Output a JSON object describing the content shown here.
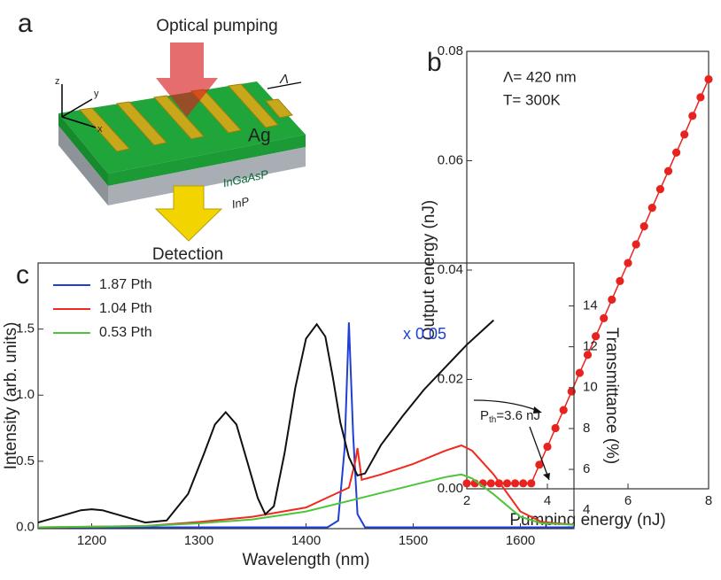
{
  "diagram": {
    "panel_label": "a",
    "pump": "Optical pumping",
    "detection": "Detection",
    "metal": "Ag",
    "gain": "InGaAsP",
    "substrate": "InP",
    "period": "Λ",
    "axis_x": "x",
    "axis_y": "y",
    "axis_z": "z"
  },
  "chart_data": [
    {
      "type": "line",
      "label": "b",
      "markers": true,
      "x_label": "Pumping energy (nJ)",
      "y_label": "Output energy (nJ)",
      "annotations": [
        "Λ= 420 nm",
        "T= 300K"
      ],
      "threshold_label": {
        "symbol": "P",
        "subscript": "th",
        "text": "=3.6 nJ"
      },
      "xlim": [
        2,
        8
      ],
      "xticks": [
        2,
        4,
        6,
        8
      ],
      "ylim": [
        0,
        0.08
      ],
      "yticks": [
        {
          "value": 0,
          "label": "0.00"
        },
        {
          "value": 0.02,
          "label": "0.02"
        },
        {
          "value": 0.04,
          "label": "0.04"
        },
        {
          "value": 0.06,
          "label": "0.06"
        },
        {
          "value": 0.08,
          "label": "0.08"
        }
      ],
      "series": [
        {
          "color": "#e8231f",
          "x": [
            2.0,
            2.2,
            2.4,
            2.6,
            2.8,
            3.0,
            3.2,
            3.4,
            3.6,
            3.8,
            4.0,
            4.2,
            4.4,
            4.6,
            4.8,
            5.0,
            5.2,
            5.4,
            5.6,
            5.8,
            6.0,
            6.2,
            6.4,
            6.6,
            6.8,
            7.0,
            7.2,
            7.4,
            7.6,
            7.8,
            8.0
          ],
          "values": [
            0.001,
            0.001,
            0.001,
            0.001,
            0.001,
            0.001,
            0.001,
            0.001,
            0.001,
            0.0044,
            0.0077,
            0.0111,
            0.0144,
            0.0178,
            0.0212,
            0.0245,
            0.0279,
            0.0312,
            0.0346,
            0.038,
            0.0413,
            0.0447,
            0.048,
            0.0514,
            0.0548,
            0.0581,
            0.0615,
            0.0648,
            0.0682,
            0.0716,
            0.0749
          ]
        }
      ]
    },
    {
      "type": "line",
      "label": "c",
      "x_label": "Wavelength (nm)",
      "y_label": "Intensity (arb. units)",
      "y2_label": "Transmittance (%)",
      "annotation": "x 0.05",
      "xlim": [
        1150,
        1650
      ],
      "xticks": [
        1200,
        1300,
        1400,
        1500,
        1600
      ],
      "ylim": [
        -0.01,
        2.0
      ],
      "yticks": [
        {
          "value": 0,
          "label": "0.0"
        },
        {
          "value": 0.5,
          "label": "0.5"
        },
        {
          "value": 1,
          "label": "1.0"
        },
        {
          "value": 1.5,
          "label": "1.5"
        }
      ],
      "y2lim": [
        3.1,
        16.1
      ],
      "y2ticks": [
        4,
        6,
        8,
        10,
        12,
        14
      ],
      "series": [
        {
          "name": "1.87 Pth",
          "color": "#1f3fd6",
          "x": [
            1150,
            1420,
            1430,
            1436,
            1440,
            1444,
            1448,
            1455,
            1650
          ],
          "values": [
            0,
            0,
            0.05,
            0.6,
            1.55,
            0.7,
            0.1,
            0,
            0
          ]
        },
        {
          "name": "1.04 Pth",
          "color": "#f02a1e",
          "x": [
            1150,
            1250,
            1300,
            1350,
            1400,
            1440,
            1446,
            1448,
            1452,
            1470,
            1500,
            1530,
            1545,
            1555,
            1575,
            1600,
            1620,
            1650
          ],
          "values": [
            0,
            0.01,
            0.04,
            0.08,
            0.15,
            0.3,
            0.5,
            0.6,
            0.36,
            0.4,
            0.48,
            0.58,
            0.62,
            0.58,
            0.4,
            0.12,
            0.04,
            0.02
          ]
        },
        {
          "name": "0.53 Pth",
          "color": "#4dc43a",
          "x": [
            1150,
            1250,
            1300,
            1350,
            1400,
            1450,
            1500,
            1530,
            1545,
            1555,
            1575,
            1600,
            1620,
            1650
          ],
          "values": [
            0,
            0.01,
            0.03,
            0.06,
            0.12,
            0.22,
            0.32,
            0.38,
            0.4,
            0.37,
            0.25,
            0.08,
            0.03,
            0.02
          ]
        },
        {
          "axis": "y2",
          "color": "#111111",
          "x": [
            1150,
            1170,
            1190,
            1200,
            1210,
            1230,
            1250,
            1270,
            1290,
            1305,
            1315,
            1325,
            1335,
            1345,
            1355,
            1362,
            1370,
            1380,
            1390,
            1400,
            1410,
            1418,
            1425,
            1432,
            1440,
            1448,
            1455,
            1470,
            1490,
            1510,
            1530,
            1550,
            1575
          ],
          "values": [
            3.4,
            3.7,
            4.0,
            4.05,
            4.0,
            3.7,
            3.4,
            3.5,
            4.8,
            6.8,
            8.2,
            8.8,
            8.2,
            6.4,
            4.6,
            3.8,
            4.2,
            6.8,
            10.0,
            12.4,
            13.1,
            12.5,
            10.5,
            8.3,
            6.6,
            5.7,
            5.8,
            7.2,
            8.6,
            9.9,
            11.0,
            12.1,
            13.3
          ]
        }
      ]
    }
  ]
}
